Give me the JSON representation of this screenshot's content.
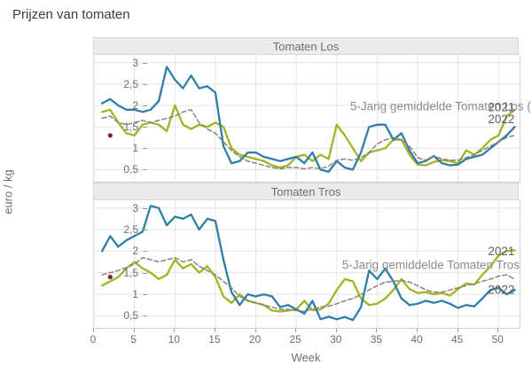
{
  "title": "Prijzen van tomaten",
  "ylabel": "euro / kg",
  "xlabel": "Week",
  "colors": {
    "s2022": "#2e7fa6",
    "s2021": "#a2b423",
    "avg": "#8c8178",
    "dot": "#7b2433",
    "grid": "#e4e4e4",
    "year_label": "#606060",
    "avg_label": "#8c8c8c"
  },
  "axes": {
    "xlim": [
      0,
      52.6
    ],
    "ylim": [
      0.22,
      3.18
    ],
    "xticks": [
      {
        "v": 0,
        "label": "0"
      },
      {
        "v": 5,
        "label": "5"
      },
      {
        "v": 10,
        "label": "10"
      },
      {
        "v": 15,
        "label": "15"
      },
      {
        "v": 20,
        "label": "20"
      },
      {
        "v": 25,
        "label": "25"
      },
      {
        "v": 30,
        "label": "30"
      },
      {
        "v": 35,
        "label": "35"
      },
      {
        "v": 40,
        "label": "40"
      },
      {
        "v": 45,
        "label": "45"
      },
      {
        "v": 50,
        "label": "50"
      }
    ],
    "yticks": [
      {
        "v": 3,
        "label": "3"
      },
      {
        "v": 2.5,
        "label": "2,5"
      },
      {
        "v": 2,
        "label": "2"
      },
      {
        "v": 1.5,
        "label": "1,5"
      },
      {
        "v": 1,
        "label": "1"
      },
      {
        "v": 0.5,
        "label": "0,5"
      }
    ]
  },
  "chart_data": [
    {
      "type": "line",
      "title": "Tomaten Los",
      "xlabel": "Week",
      "ylabel": "euro / kg",
      "x_start_week": 1,
      "series": [
        {
          "name": "2021",
          "color_key": "s2021",
          "dashed": false,
          "values": [
            1.85,
            1.9,
            1.6,
            1.35,
            1.3,
            1.55,
            1.6,
            1.55,
            1.4,
            2.0,
            1.55,
            1.45,
            1.55,
            1.5,
            1.6,
            1.5,
            1.0,
            0.85,
            0.8,
            0.75,
            0.7,
            0.6,
            0.55,
            0.6,
            0.8,
            0.85,
            0.7,
            0.85,
            0.75,
            1.55,
            1.3,
            1.0,
            0.7,
            0.9,
            0.95,
            1.0,
            1.2,
            1.2,
            0.85,
            0.62,
            0.6,
            0.68,
            0.72,
            0.7,
            0.65,
            0.95,
            0.85,
            1.0,
            1.2,
            1.3,
            1.75,
            1.9
          ]
        },
        {
          "name": "2022",
          "color_key": "s2022",
          "dashed": false,
          "values": [
            2.05,
            2.15,
            2.0,
            1.9,
            1.9,
            1.85,
            1.9,
            2.1,
            2.9,
            2.6,
            2.4,
            2.7,
            2.4,
            2.45,
            2.3,
            1.05,
            0.65,
            0.7,
            0.9,
            0.9,
            0.8,
            0.75,
            0.7,
            0.75,
            0.8,
            0.65,
            0.9,
            0.5,
            0.45,
            0.7,
            0.55,
            0.5,
            0.9,
            1.5,
            1.55,
            1.55,
            1.2,
            1.35,
            0.95,
            0.65,
            0.7,
            0.82,
            0.65,
            0.6,
            0.62,
            0.75,
            0.8,
            0.85,
            1.0,
            1.15,
            1.3,
            1.5
          ]
        },
        {
          "name": "5-Jarig gemiddelde Tomaten Los",
          "color_key": "avg",
          "dashed": true,
          "values": [
            1.7,
            1.75,
            1.6,
            1.55,
            1.6,
            1.65,
            1.6,
            1.65,
            1.7,
            1.75,
            1.85,
            1.9,
            1.6,
            1.45,
            1.35,
            1.15,
            0.95,
            0.8,
            0.7,
            0.65,
            0.6,
            0.55,
            0.52,
            0.55,
            0.55,
            0.52,
            0.55,
            0.52,
            0.58,
            0.72,
            0.75,
            0.72,
            0.78,
            0.9,
            1.1,
            1.2,
            1.25,
            1.2,
            1.05,
            0.78,
            0.72,
            0.82,
            0.75,
            0.72,
            0.72,
            0.78,
            0.85,
            0.95,
            1.05,
            1.15,
            1.25,
            1.3
          ]
        }
      ],
      "dot": {
        "week": 2,
        "value": 1.3
      },
      "annotations": [
        {
          "text": "5-Jarig gemiddelde Tomaten Los (",
          "week": 54.0,
          "value": 1.98,
          "anchor": "end",
          "color_key": "avg_label"
        },
        {
          "text": "2021",
          "week": 48.7,
          "value": 1.96,
          "anchor": "start",
          "color_key": "year_label"
        },
        {
          "text": "2022",
          "week": 48.7,
          "value": 1.68,
          "anchor": "start",
          "color_key": "year_label"
        }
      ]
    },
    {
      "type": "line",
      "title": "Tomaten Tros",
      "xlabel": "Week",
      "ylabel": "euro / kg",
      "x_start_week": 1,
      "series": [
        {
          "name": "2021",
          "color_key": "s2021",
          "dashed": false,
          "values": [
            1.2,
            1.3,
            1.4,
            1.6,
            1.75,
            1.6,
            1.5,
            1.35,
            1.45,
            1.8,
            1.6,
            1.7,
            1.5,
            1.65,
            1.4,
            0.95,
            0.8,
            1.0,
            0.85,
            0.8,
            0.75,
            0.62,
            0.6,
            0.62,
            0.65,
            0.85,
            0.63,
            0.65,
            0.78,
            1.1,
            1.35,
            1.3,
            0.9,
            0.75,
            0.78,
            0.9,
            1.1,
            1.35,
            1.12,
            1.03,
            1.05,
            1.0,
            1.03,
            0.97,
            1.12,
            1.25,
            1.22,
            1.45,
            1.65,
            1.9,
            2.0,
            2.02
          ]
        },
        {
          "name": "2022",
          "color_key": "s2022",
          "dashed": false,
          "values": [
            2.0,
            2.35,
            2.1,
            2.25,
            2.35,
            2.45,
            3.05,
            3.0,
            2.6,
            2.8,
            2.75,
            2.85,
            2.5,
            2.75,
            2.7,
            1.8,
            1.05,
            0.75,
            1.0,
            0.95,
            1.0,
            0.95,
            0.7,
            0.75,
            0.65,
            0.55,
            0.85,
            0.42,
            0.48,
            0.42,
            0.47,
            0.4,
            0.7,
            1.55,
            1.35,
            1.6,
            1.3,
            0.9,
            0.75,
            0.78,
            0.85,
            0.8,
            0.85,
            0.78,
            0.68,
            0.75,
            0.72,
            0.9,
            1.1,
            1.15,
            1.0,
            1.1
          ]
        },
        {
          "name": "5-Jarig gemiddelde Tomaten Tros",
          "color_key": "avg",
          "dashed": true,
          "values": [
            1.45,
            1.5,
            1.55,
            1.62,
            1.7,
            1.85,
            1.8,
            1.75,
            1.8,
            1.85,
            1.75,
            1.8,
            1.65,
            1.55,
            1.45,
            1.3,
            1.15,
            0.95,
            0.85,
            0.8,
            0.75,
            0.7,
            0.65,
            0.65,
            0.62,
            0.6,
            0.66,
            0.7,
            0.72,
            0.78,
            0.85,
            0.9,
            1.0,
            1.1,
            1.2,
            1.28,
            1.3,
            1.32,
            1.28,
            1.2,
            1.1,
            1.05,
            1.05,
            1.1,
            1.15,
            1.2,
            1.25,
            1.3,
            1.35,
            1.42,
            1.45,
            1.35
          ]
        }
      ],
      "dot": {
        "week": 2,
        "value": 1.4
      },
      "annotations": [
        {
          "text": "2021",
          "week": 48.7,
          "value": 2.0,
          "anchor": "start",
          "color_key": "year_label"
        },
        {
          "text": "5-Jarig gemiddelde Tomaten Tros",
          "week": 52.6,
          "value": 1.68,
          "anchor": "end",
          "color_key": "avg_label"
        },
        {
          "text": "2022",
          "week": 48.7,
          "value": 1.1,
          "anchor": "start",
          "color_key": "year_label"
        }
      ]
    }
  ]
}
